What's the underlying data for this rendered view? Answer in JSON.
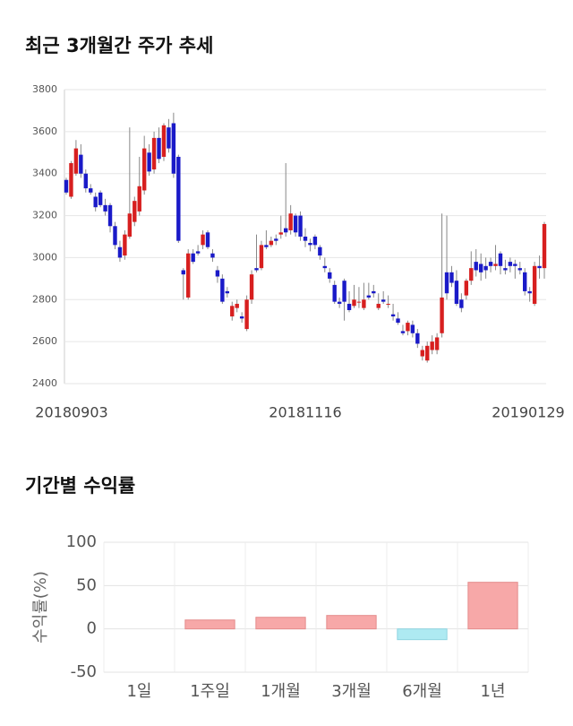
{
  "chart_data": [
    {
      "type": "candlestick",
      "title": "최근 3개월간 주가 추세",
      "categories": [
        "20180903",
        null,
        null,
        null,
        null,
        null,
        null,
        null,
        null,
        null,
        null,
        null,
        null,
        null,
        null,
        null,
        null,
        null,
        null,
        null,
        null,
        null,
        null,
        null,
        null,
        null,
        null,
        null,
        null,
        null,
        null,
        null,
        null,
        null,
        null,
        null,
        null,
        null,
        null,
        null,
        null,
        null,
        null,
        null,
        null,
        null,
        null,
        null,
        null,
        "20181116",
        null,
        null,
        null,
        null,
        null,
        null,
        null,
        null,
        null,
        null,
        null,
        null,
        null,
        null,
        null,
        null,
        null,
        null,
        null,
        null,
        null,
        null,
        null,
        null,
        null,
        null,
        null,
        null,
        null,
        null,
        null,
        null,
        null,
        null,
        null,
        null,
        null,
        null,
        null,
        null,
        null,
        null,
        null,
        null,
        null,
        null,
        null,
        null,
        "20190129"
      ],
      "open": [
        3370,
        3290,
        3400,
        3490,
        3400,
        3330,
        3290,
        3310,
        3250,
        3250,
        3150,
        3050,
        3010,
        3100,
        3170,
        3220,
        3320,
        3500,
        3420,
        3570,
        3480,
        3620,
        3640,
        3480,
        2940,
        2810,
        3020,
        3030,
        3060,
        3120,
        3020,
        2940,
        2900,
        2840,
        2720,
        2760,
        2720,
        2660,
        2800,
        2950,
        2950,
        3060,
        3060,
        3090,
        3110,
        3140,
        3130,
        3200,
        3200,
        3100,
        3070,
        3100,
        3050,
        2960,
        2930,
        2870,
        2790,
        2890,
        2780,
        2770,
        2790,
        2760,
        2820,
        2840,
        2760,
        2800,
        2780,
        2730,
        2710,
        2650,
        2650,
        2680,
        2640,
        2530,
        2510,
        2560,
        2560,
        2640,
        2930,
        2930,
        2890,
        2800,
        2820,
        2890,
        2980,
        2970,
        2960,
        2980,
        2960,
        3020,
        2950,
        2980,
        2970,
        2950,
        2930,
        2840,
        2780,
        2960,
        2950
      ],
      "high": [
        3380,
        3460,
        3560,
        3540,
        3420,
        3350,
        3310,
        3320,
        3280,
        3260,
        3170,
        3080,
        3130,
        3620,
        3290,
        3480,
        3580,
        3540,
        3600,
        3620,
        3640,
        3660,
        3690,
        3490,
        2950,
        3040,
        3040,
        3060,
        3130,
        3130,
        3040,
        2960,
        2920,
        2860,
        2790,
        2800,
        2740,
        2820,
        2940,
        3110,
        3080,
        3130,
        3100,
        3110,
        3200,
        3450,
        3250,
        3210,
        3220,
        3140,
        3090,
        3110,
        3060,
        3000,
        2950,
        2890,
        2810,
        2900,
        2840,
        2870,
        2860,
        2880,
        2880,
        2870,
        2830,
        2840,
        2820,
        2780,
        2740,
        2680,
        2700,
        2700,
        2660,
        2580,
        2600,
        2630,
        2640,
        3210,
        3200,
        2960,
        2940,
        2830,
        2900,
        3030,
        3040,
        3020,
        3000,
        3000,
        3060,
        3030,
        2990,
        3000,
        2990,
        2980,
        2950,
        2860,
        2980,
        3010,
        3170
      ],
      "low": [
        3300,
        3280,
        3390,
        3380,
        3310,
        3300,
        3220,
        3240,
        3200,
        3120,
        3040,
        2980,
        2990,
        3090,
        3150,
        3200,
        3300,
        3390,
        3400,
        3450,
        3460,
        3500,
        3380,
        3070,
        2800,
        2800,
        2970,
        3010,
        3040,
        3040,
        2980,
        2880,
        2780,
        2810,
        2700,
        2740,
        2690,
        2650,
        2780,
        2930,
        2940,
        3040,
        3050,
        3060,
        3090,
        3100,
        3110,
        3100,
        3080,
        3050,
        3030,
        3040,
        2990,
        2930,
        2880,
        2780,
        2760,
        2700,
        2740,
        2760,
        2760,
        2750,
        2800,
        2810,
        2750,
        2780,
        2760,
        2700,
        2680,
        2630,
        2630,
        2620,
        2570,
        2510,
        2500,
        2540,
        2540,
        2620,
        2800,
        2860,
        2770,
        2740,
        2800,
        2870,
        2910,
        2890,
        2900,
        2930,
        2940,
        2920,
        2920,
        2930,
        2900,
        2920,
        2820,
        2790,
        2770,
        2900,
        2900
      ],
      "close": [
        3310,
        3450,
        3520,
        3400,
        3330,
        3310,
        3240,
        3250,
        3220,
        3150,
        3060,
        3000,
        3110,
        3210,
        3270,
        3340,
        3520,
        3410,
        3570,
        3470,
        3630,
        3520,
        3400,
        3080,
        2920,
        3020,
        2980,
        3020,
        3110,
        3050,
        3000,
        2910,
        2790,
        2830,
        2770,
        2780,
        2710,
        2800,
        2920,
        2940,
        3060,
        3050,
        3080,
        3080,
        3120,
        3120,
        3210,
        3120,
        3100,
        3080,
        3060,
        3060,
        3010,
        2950,
        2900,
        2790,
        2780,
        2790,
        2750,
        2800,
        2790,
        2800,
        2810,
        2830,
        2780,
        2790,
        2780,
        2720,
        2690,
        2640,
        2690,
        2640,
        2590,
        2560,
        2580,
        2600,
        2620,
        2810,
        2830,
        2880,
        2780,
        2760,
        2890,
        2950,
        2940,
        2930,
        2940,
        2960,
        2970,
        2960,
        2940,
        2960,
        2960,
        2940,
        2840,
        2830,
        2960,
        2950,
        3160
      ],
      "up_color": "#d71f1f",
      "down_color": "#1a1ac8",
      "ylim": [
        2400,
        3800
      ],
      "yticks": [
        2400,
        2600,
        2800,
        3000,
        3200,
        3400,
        3600,
        3800
      ],
      "grid": true
    },
    {
      "type": "bar",
      "title": "기간별 수익률",
      "y_label": "수익률(%)",
      "categories": [
        "1일",
        "1주일",
        "1개월",
        "3개월",
        "6개월",
        "1년"
      ],
      "values": [
        0,
        10.3,
        13.4,
        15.5,
        -12.4,
        53.8
      ],
      "positive_color": "#f7a8a8",
      "negative_color": "#aeeaf2",
      "ylim": [
        -50,
        100
      ],
      "yticks": [
        -50,
        0,
        50,
        100
      ],
      "grid": true
    }
  ]
}
